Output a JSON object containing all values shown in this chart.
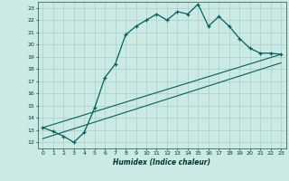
{
  "xlabel": "Humidex (Indice chaleur)",
  "xlim": [
    -0.5,
    23.5
  ],
  "ylim": [
    11.5,
    23.5
  ],
  "xticks": [
    0,
    1,
    2,
    3,
    4,
    5,
    6,
    7,
    8,
    9,
    10,
    11,
    12,
    13,
    14,
    15,
    16,
    17,
    18,
    19,
    20,
    21,
    22,
    23
  ],
  "yticks": [
    12,
    13,
    14,
    15,
    16,
    17,
    18,
    19,
    20,
    21,
    22,
    23
  ],
  "bg_color": "#cceae4",
  "grid_color": "#aacccc",
  "line_color": "#006060",
  "line1_x": [
    0,
    1,
    2,
    3,
    4,
    5,
    6,
    7,
    8,
    9,
    10,
    11,
    12,
    13,
    14,
    15,
    16,
    17,
    18,
    19,
    20,
    21,
    22,
    23
  ],
  "line1_y": [
    13.2,
    12.9,
    12.5,
    12.0,
    12.8,
    14.8,
    17.3,
    18.4,
    20.8,
    21.5,
    22.0,
    22.5,
    22.0,
    22.7,
    22.5,
    23.3,
    21.5,
    22.3,
    21.5,
    20.5,
    19.7,
    19.3,
    19.3,
    19.2
  ],
  "line2_x": [
    0,
    23
  ],
  "line2_y": [
    12.3,
    18.5
  ],
  "line3_x": [
    0,
    23
  ],
  "line3_y": [
    13.2,
    19.2
  ],
  "figsize": [
    3.2,
    2.0
  ],
  "dpi": 100
}
